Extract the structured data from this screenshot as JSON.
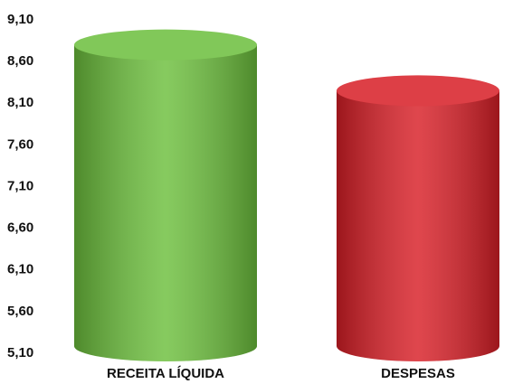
{
  "chart_data": {
    "type": "bar",
    "categories": [
      "RECEITA LÍQUIDA",
      "DESPESAS"
    ],
    "values": [
      8.8,
      8.25
    ],
    "colors": [
      "#6cbf3c",
      "#d81e26"
    ],
    "ylim": [
      5.1,
      9.1
    ],
    "yticks": [
      {
        "value": 5.1,
        "label": "5,10"
      },
      {
        "value": 5.6,
        "label": "5,60"
      },
      {
        "value": 6.1,
        "label": "6,10"
      },
      {
        "value": 6.6,
        "label": "6,60"
      },
      {
        "value": 7.1,
        "label": "7,10"
      },
      {
        "value": 7.6,
        "label": "7,60"
      },
      {
        "value": 8.1,
        "label": "8,10"
      },
      {
        "value": 8.6,
        "label": "8,60"
      },
      {
        "value": 9.1,
        "label": "9,10"
      }
    ],
    "grid": true
  }
}
